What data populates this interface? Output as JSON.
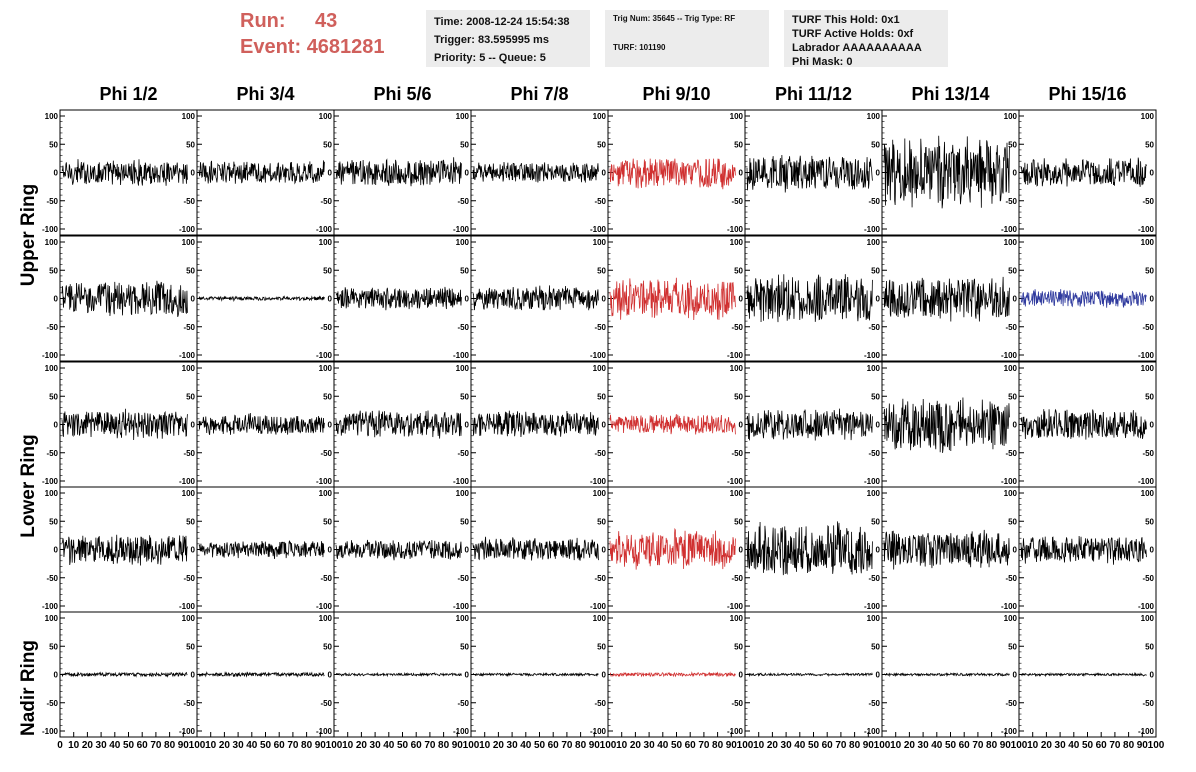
{
  "run": {
    "run_label": "Run:",
    "run_value": "43",
    "event_label": "Event:",
    "event_value": "4681281"
  },
  "info_time": {
    "time": "Time: 2008-12-24 15:54:38",
    "trigger": "Trigger: 83.595995 ms",
    "priority": "Priority: 5 -- Queue: 5"
  },
  "info_trig": {
    "trig": "Trig Num: 35645 -- Trig Type: RF",
    "turf": "TURF: 101190"
  },
  "info_turf": {
    "hold": "TURF This Hold: 0x1",
    "active": "TURF Active Holds: 0xf",
    "labrador": "Labrador AAAAAAAAAA",
    "phimask": "Phi Mask: 0"
  },
  "columns": [
    "Phi 1/2",
    "Phi 3/4",
    "Phi 5/6",
    "Phi 7/8",
    "Phi 9/10",
    "Phi 11/12",
    "Phi 13/14",
    "Phi 15/16"
  ],
  "ring_labels": {
    "upper": "Upper Ring",
    "lower": "Lower Ring",
    "nadir": "Nadir Ring"
  },
  "colors": {
    "trace": "#000000",
    "highlight_red": "#d03030",
    "highlight_blue": "#2f3a9e"
  },
  "chart_data": {
    "type": "line",
    "x_ticks": [
      "0",
      "10",
      "20",
      "30",
      "40",
      "50",
      "60",
      "70",
      "80",
      "90",
      "100"
    ],
    "xlim": [
      0,
      100
    ],
    "y_ticks_left": [
      "100",
      "50",
      "0",
      "-50",
      "-100"
    ],
    "y_ticks_right": [
      "100",
      "50",
      "0",
      "-50",
      "-100"
    ],
    "ylim": [
      -100,
      100
    ],
    "rows": [
      {
        "row": 1,
        "amplitudes": [
          20,
          18,
          22,
          16,
          25,
          28,
          55,
          22
        ]
      },
      {
        "row": 2,
        "amplitudes": [
          28,
          3,
          18,
          20,
          32,
          38,
          34,
          14
        ]
      },
      {
        "row": 3,
        "amplitudes": [
          22,
          16,
          22,
          20,
          16,
          24,
          42,
          24
        ]
      },
      {
        "row": 4,
        "amplitudes": [
          24,
          14,
          16,
          18,
          30,
          42,
          30,
          22
        ]
      },
      {
        "row": 5,
        "amplitudes": [
          3,
          3,
          2,
          2,
          3,
          2,
          2,
          2
        ]
      }
    ],
    "highlights": [
      {
        "col": 4,
        "row": 0,
        "color": "red"
      },
      {
        "col": 4,
        "row": 1,
        "color": "red"
      },
      {
        "col": 4,
        "row": 2,
        "color": "red"
      },
      {
        "col": 4,
        "row": 3,
        "color": "red"
      },
      {
        "col": 4,
        "row": 4,
        "color": "red"
      },
      {
        "col": 7,
        "row": 1,
        "color": "blue"
      }
    ]
  }
}
